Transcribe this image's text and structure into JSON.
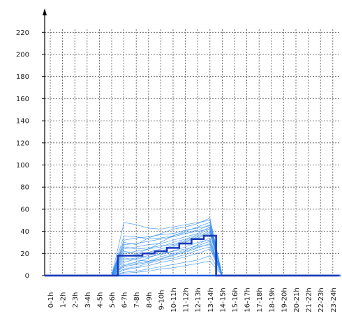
{
  "chart_data": {
    "type": "line",
    "categories": [
      "0-1h",
      "1-2h",
      "2-3h",
      "3-4h",
      "4-5h",
      "5-6h",
      "6-7h",
      "7-8h",
      "8-9h",
      "9-10h",
      "10-11h",
      "11-12h",
      "12-13h",
      "13-14h",
      "14-15h",
      "15-16h",
      "16-17h",
      "17-18h",
      "18-19h",
      "19-20h",
      "20-21h",
      "21-22h",
      "22-23h",
      "23-24h"
    ],
    "y_ticks": [
      0,
      20,
      40,
      60,
      80,
      100,
      120,
      140,
      160,
      180,
      200,
      220
    ],
    "ylim": [
      0,
      230
    ],
    "grid": true,
    "title": "",
    "xlabel": "",
    "ylabel": "",
    "series": [
      {
        "values": [
          0,
          0,
          0,
          0,
          0,
          0,
          18,
          18,
          20,
          22,
          25,
          29,
          33,
          36,
          0,
          0,
          0,
          0,
          0,
          0,
          0,
          0,
          0,
          0
        ],
        "highlight": true,
        "color": "#1a3bb8"
      },
      {
        "values": [
          0,
          0,
          0,
          0,
          0,
          0,
          48,
          46,
          43,
          42,
          44,
          46,
          48,
          50,
          0,
          0,
          0,
          0,
          0,
          0,
          0,
          0,
          0,
          0
        ],
        "color": "#2f8cf0"
      },
      {
        "values": [
          0,
          0,
          0,
          0,
          0,
          0,
          30,
          28,
          34,
          38,
          42,
          44,
          47,
          52,
          0,
          0,
          0,
          0,
          0,
          0,
          0,
          0,
          0,
          0
        ],
        "color": "#2f8cf0"
      },
      {
        "values": [
          0,
          0,
          0,
          0,
          0,
          0,
          22,
          20,
          24,
          30,
          36,
          40,
          44,
          48,
          0,
          0,
          0,
          0,
          0,
          0,
          0,
          0,
          0,
          0
        ],
        "color": "#2f8cf0"
      },
      {
        "values": [
          0,
          0,
          0,
          0,
          0,
          0,
          26,
          24,
          25,
          27,
          28,
          32,
          36,
          40,
          0,
          0,
          0,
          0,
          0,
          0,
          0,
          0,
          0,
          0
        ],
        "color": "#2f8cf0"
      },
      {
        "values": [
          0,
          0,
          0,
          0,
          0,
          0,
          14,
          16,
          18,
          22,
          26,
          30,
          34,
          38,
          0,
          0,
          0,
          0,
          0,
          0,
          0,
          0,
          0,
          0
        ],
        "color": "#2f8cf0"
      },
      {
        "values": [
          0,
          0,
          0,
          0,
          0,
          0,
          10,
          12,
          16,
          20,
          22,
          26,
          30,
          32,
          0,
          0,
          0,
          0,
          0,
          0,
          0,
          0,
          0,
          0
        ],
        "color": "#2f8cf0"
      },
      {
        "values": [
          0,
          0,
          0,
          0,
          0,
          0,
          8,
          10,
          12,
          15,
          18,
          22,
          26,
          28,
          0,
          0,
          0,
          0,
          0,
          0,
          0,
          0,
          0,
          0
        ],
        "color": "#2f8cf0"
      },
      {
        "values": [
          0,
          0,
          0,
          0,
          0,
          0,
          5,
          7,
          9,
          12,
          14,
          17,
          20,
          24,
          0,
          0,
          0,
          0,
          0,
          0,
          0,
          0,
          0,
          0
        ],
        "color": "#2f8cf0"
      },
      {
        "values": [
          0,
          0,
          0,
          0,
          0,
          0,
          3,
          4,
          6,
          8,
          10,
          12,
          14,
          18,
          0,
          0,
          0,
          0,
          0,
          0,
          0,
          0,
          0,
          0
        ],
        "color": "#2f8cf0"
      },
      {
        "values": [
          0,
          0,
          0,
          0,
          0,
          0,
          20,
          22,
          24,
          26,
          30,
          33,
          37,
          42,
          0,
          0,
          0,
          0,
          0,
          0,
          0,
          0,
          0,
          0
        ],
        "color": "#2f8cf0"
      },
      {
        "values": [
          0,
          0,
          0,
          0,
          0,
          0,
          32,
          34,
          35,
          37,
          38,
          41,
          43,
          45,
          0,
          0,
          0,
          0,
          0,
          0,
          0,
          0,
          0,
          0
        ],
        "color": "#2f8cf0"
      },
      {
        "values": [
          0,
          0,
          0,
          0,
          0,
          0,
          16,
          14,
          13,
          15,
          19,
          21,
          25,
          29,
          0,
          0,
          0,
          0,
          0,
          0,
          0,
          0,
          0,
          0
        ],
        "color": "#2f8cf0"
      },
      {
        "values": [
          0,
          0,
          0,
          0,
          0,
          0,
          12,
          15,
          17,
          19,
          22,
          24,
          27,
          31,
          0,
          0,
          0,
          0,
          0,
          0,
          0,
          0,
          0,
          0
        ],
        "color": "#2f8cf0"
      },
      {
        "values": [
          0,
          0,
          0,
          0,
          0,
          0,
          2,
          3,
          4,
          6,
          7,
          9,
          11,
          13,
          0,
          0,
          0,
          0,
          0,
          0,
          0,
          0,
          0,
          0
        ],
        "color": "#2f8cf0"
      },
      {
        "values": [
          0,
          0,
          0,
          0,
          0,
          0,
          24,
          26,
          28,
          29,
          32,
          35,
          38,
          44,
          0,
          0,
          0,
          0,
          0,
          0,
          0,
          0,
          0,
          0
        ],
        "color": "#2f8cf0"
      },
      {
        "values": [
          0,
          0,
          0,
          0,
          0,
          0,
          36,
          35,
          33,
          34,
          36,
          39,
          41,
          46,
          0,
          0,
          0,
          0,
          0,
          0,
          0,
          0,
          0,
          0
        ],
        "color": "#2f8cf0"
      },
      {
        "values": [
          0,
          0,
          0,
          0,
          0,
          0,
          6,
          8,
          11,
          14,
          16,
          19,
          23,
          26,
          0,
          0,
          0,
          0,
          0,
          0,
          0,
          0,
          0,
          0
        ],
        "color": "#2f8cf0"
      },
      {
        "values": [
          0,
          0,
          0,
          0,
          0,
          0,
          18,
          19,
          21,
          24,
          27,
          31,
          35,
          39,
          0,
          0,
          0,
          0,
          0,
          0,
          0,
          0,
          0,
          0
        ],
        "color": "#2f8cf0"
      },
      {
        "values": [
          0,
          0,
          0,
          0,
          0,
          0,
          28,
          29,
          31,
          33,
          35,
          38,
          40,
          42,
          0,
          0,
          0,
          0,
          0,
          0,
          0,
          0,
          0,
          0
        ],
        "color": "#2f8cf0"
      },
      {
        "values": [
          0,
          0,
          0,
          0,
          0,
          0,
          9,
          11,
          13,
          17,
          20,
          23,
          28,
          34,
          0,
          0,
          0,
          0,
          0,
          0,
          0,
          0,
          0,
          0
        ],
        "color": "#2f8cf0"
      }
    ]
  }
}
